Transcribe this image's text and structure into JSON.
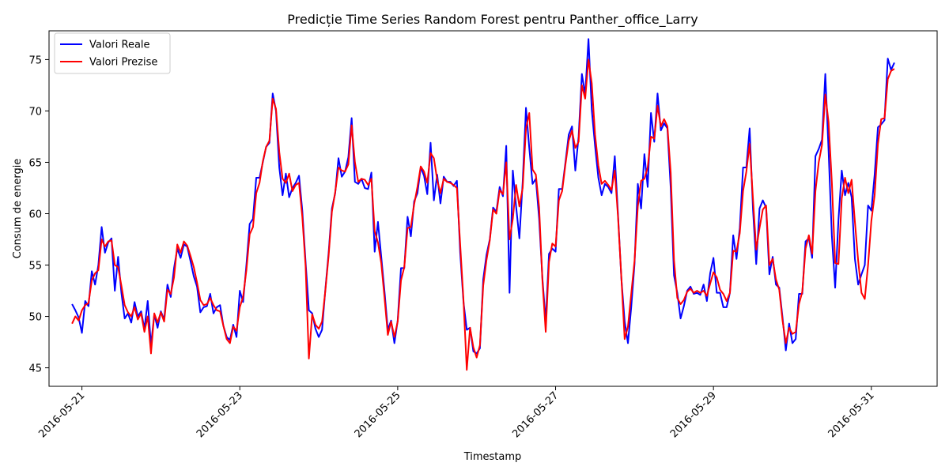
{
  "chart_data": {
    "type": "line",
    "title": "Predicție Time Series Random Forest pentru Panther_office_Larry",
    "xlabel": "Timestamp",
    "ylabel": "Consum de energie",
    "x_start": "2016-05-20 21:00",
    "x_step_hours": 1,
    "xlim": [
      "2016-05-20 14:00",
      "2016-05-31 20:00"
    ],
    "ylim": [
      43.2,
      77.8
    ],
    "x_ticks": [
      "2016-05-21",
      "2016-05-23",
      "2016-05-25",
      "2016-05-27",
      "2016-05-29",
      "2016-05-31"
    ],
    "y_ticks": [
      45,
      50,
      55,
      60,
      65,
      70,
      75
    ],
    "grid": false,
    "legend": {
      "position": "top-left"
    },
    "series": [
      {
        "name": "Valori Reale",
        "color": "#0000ff",
        "values": [
          51.2,
          50.6,
          49.9,
          48.4,
          51.5,
          51.0,
          54.4,
          53.1,
          55.0,
          58.7,
          56.2,
          57.2,
          57.6,
          52.5,
          55.8,
          52.3,
          49.8,
          50.3,
          49.4,
          51.4,
          50.0,
          50.5,
          48.8,
          51.5,
          47.2,
          50.2,
          48.9,
          50.5,
          49.7,
          53.1,
          51.9,
          54.7,
          56.6,
          55.7,
          57.0,
          56.8,
          55.4,
          53.9,
          52.9,
          50.4,
          50.9,
          51.0,
          52.2,
          50.3,
          50.9,
          51.1,
          49.1,
          48.0,
          47.7,
          49.2,
          48.0,
          52.5,
          51.4,
          55.0,
          59.0,
          59.5,
          63.5,
          63.5,
          65.0,
          66.5,
          66.9,
          71.7,
          70.0,
          64.5,
          61.8,
          63.9,
          61.6,
          62.5,
          63.0,
          63.7,
          60.3,
          55.3,
          50.6,
          50.3,
          48.8,
          48.0,
          48.7,
          52.6,
          56.2,
          60.5,
          62.0,
          65.4,
          63.6,
          64.1,
          65.5,
          69.3,
          63.1,
          62.9,
          63.4,
          62.5,
          62.4,
          64.0,
          56.3,
          59.2,
          55.8,
          52.4,
          48.7,
          49.6,
          47.4,
          49.6,
          54.7,
          54.7,
          59.7,
          57.8,
          61.2,
          62.0,
          64.5,
          63.7,
          61.9,
          66.9,
          61.3,
          63.8,
          61.0,
          63.6,
          63.1,
          63.1,
          62.7,
          63.2,
          56.2,
          51.4,
          48.7,
          48.9,
          46.6,
          46.4,
          46.9,
          53.6,
          56.0,
          57.5,
          60.6,
          60.2,
          62.6,
          61.7,
          66.6,
          52.3,
          64.2,
          60.7,
          57.6,
          63.1,
          70.3,
          66.4,
          62.9,
          63.4,
          59.5,
          53.7,
          49.5,
          56.1,
          56.6,
          56.3,
          62.4,
          62.4,
          65.0,
          67.7,
          68.5,
          64.2,
          67.5,
          73.6,
          71.6,
          77.0,
          70.1,
          66.6,
          63.5,
          61.8,
          62.9,
          62.6,
          62.0,
          65.6,
          59.8,
          53.7,
          49.5,
          47.4,
          50.9,
          55.1,
          62.9,
          60.5,
          65.8,
          62.6,
          69.8,
          67.0,
          71.7,
          68.1,
          68.8,
          68.3,
          62.5,
          54.0,
          52.3,
          49.8,
          51.0,
          52.5,
          52.9,
          52.2,
          52.3,
          52.1,
          53.1,
          51.5,
          54.2,
          55.7,
          52.3,
          52.3,
          50.9,
          50.9,
          52.3,
          57.9,
          55.6,
          58.6,
          64.5,
          64.5,
          68.3,
          60.5,
          55.1,
          60.5,
          61.3,
          60.6,
          54.1,
          55.8,
          53.1,
          52.8,
          49.9,
          46.7,
          49.3,
          47.4,
          47.8,
          52.2,
          52.2,
          57.3,
          57.6,
          55.7,
          65.6,
          66.3,
          67.2,
          73.6,
          66.1,
          57.8,
          52.8,
          59.4,
          64.2,
          61.8,
          63.0,
          61.6,
          55.6,
          53.1,
          54.1,
          55.0,
          60.8,
          60.3,
          63.8,
          68.4,
          68.7,
          69.1,
          75.1,
          74.0,
          74.7
        ]
      },
      {
        "name": "Valori Prezise",
        "color": "#ff0000",
        "values": [
          49.3,
          50.0,
          49.6,
          50.6,
          51.1,
          51.3,
          53.5,
          54.2,
          54.5,
          57.5,
          56.8,
          57.3,
          57.4,
          55.0,
          54.8,
          53.0,
          51.1,
          50.4,
          50.0,
          50.9,
          49.7,
          50.3,
          48.5,
          50.0,
          46.4,
          50.3,
          49.4,
          50.4,
          49.5,
          52.6,
          52.2,
          53.8,
          57.0,
          56.2,
          57.3,
          56.9,
          55.9,
          54.8,
          53.3,
          51.6,
          51.1,
          51.2,
          51.8,
          51.1,
          50.6,
          50.5,
          49.1,
          47.8,
          47.4,
          49.0,
          48.6,
          50.9,
          51.9,
          54.5,
          58.0,
          58.7,
          62.0,
          63.0,
          65.1,
          66.5,
          67.1,
          71.2,
          70.2,
          66.0,
          63.4,
          63.0,
          63.9,
          62.2,
          62.8,
          63.0,
          59.7,
          54.9,
          45.9,
          50.2,
          49.2,
          48.8,
          49.5,
          52.5,
          55.9,
          60.2,
          62.1,
          64.5,
          64.2,
          64.1,
          64.8,
          68.6,
          65.0,
          63.1,
          63.4,
          63.3,
          62.8,
          63.4,
          58.3,
          57.2,
          55.2,
          51.8,
          48.2,
          49.5,
          48.0,
          49.5,
          53.5,
          54.8,
          58.6,
          58.7,
          60.9,
          62.6,
          64.6,
          64.1,
          63.0,
          65.9,
          65.4,
          63.3,
          62.0,
          63.4,
          63.1,
          63.0,
          62.8,
          62.5,
          57.0,
          51.6,
          44.8,
          48.9,
          47.0,
          46.0,
          47.2,
          53.0,
          55.5,
          57.4,
          60.4,
          60.0,
          62.3,
          61.9,
          65.0,
          57.5,
          59.5,
          62.8,
          60.7,
          62.5,
          68.3,
          69.8,
          64.3,
          63.8,
          60.6,
          53.5,
          48.5,
          55.3,
          57.1,
          56.8,
          61.3,
          62.2,
          64.8,
          67.1,
          68.1,
          66.4,
          67.0,
          72.5,
          71.2,
          75.0,
          72.7,
          67.7,
          64.7,
          62.9,
          63.2,
          62.8,
          62.3,
          64.2,
          59.6,
          53.8,
          47.8,
          49.0,
          52.2,
          55.4,
          60.7,
          63.2,
          63.4,
          64.5,
          67.5,
          67.3,
          70.5,
          68.5,
          69.2,
          68.5,
          64.0,
          55.5,
          51.8,
          51.2,
          51.6,
          52.4,
          52.7,
          52.3,
          52.5,
          52.3,
          52.5,
          52.0,
          53.2,
          54.3,
          53.8,
          52.6,
          52.2,
          51.5,
          52.3,
          56.4,
          56.3,
          58.1,
          62.2,
          64.1,
          66.8,
          61.5,
          56.5,
          58.6,
          60.4,
          60.8,
          55.0,
          55.6,
          53.6,
          52.6,
          49.6,
          47.4,
          48.9,
          48.3,
          48.5,
          51.2,
          52.4,
          56.6,
          57.9,
          56.1,
          62.2,
          65.0,
          66.7,
          71.6,
          68.9,
          63.0,
          55.2,
          55.1,
          61.5,
          63.5,
          62.0,
          63.3,
          59.2,
          55.4,
          52.3,
          51.7,
          55.0,
          59.3,
          61.8,
          66.8,
          69.2,
          69.3,
          73.1,
          73.9,
          74.1
        ]
      }
    ]
  }
}
